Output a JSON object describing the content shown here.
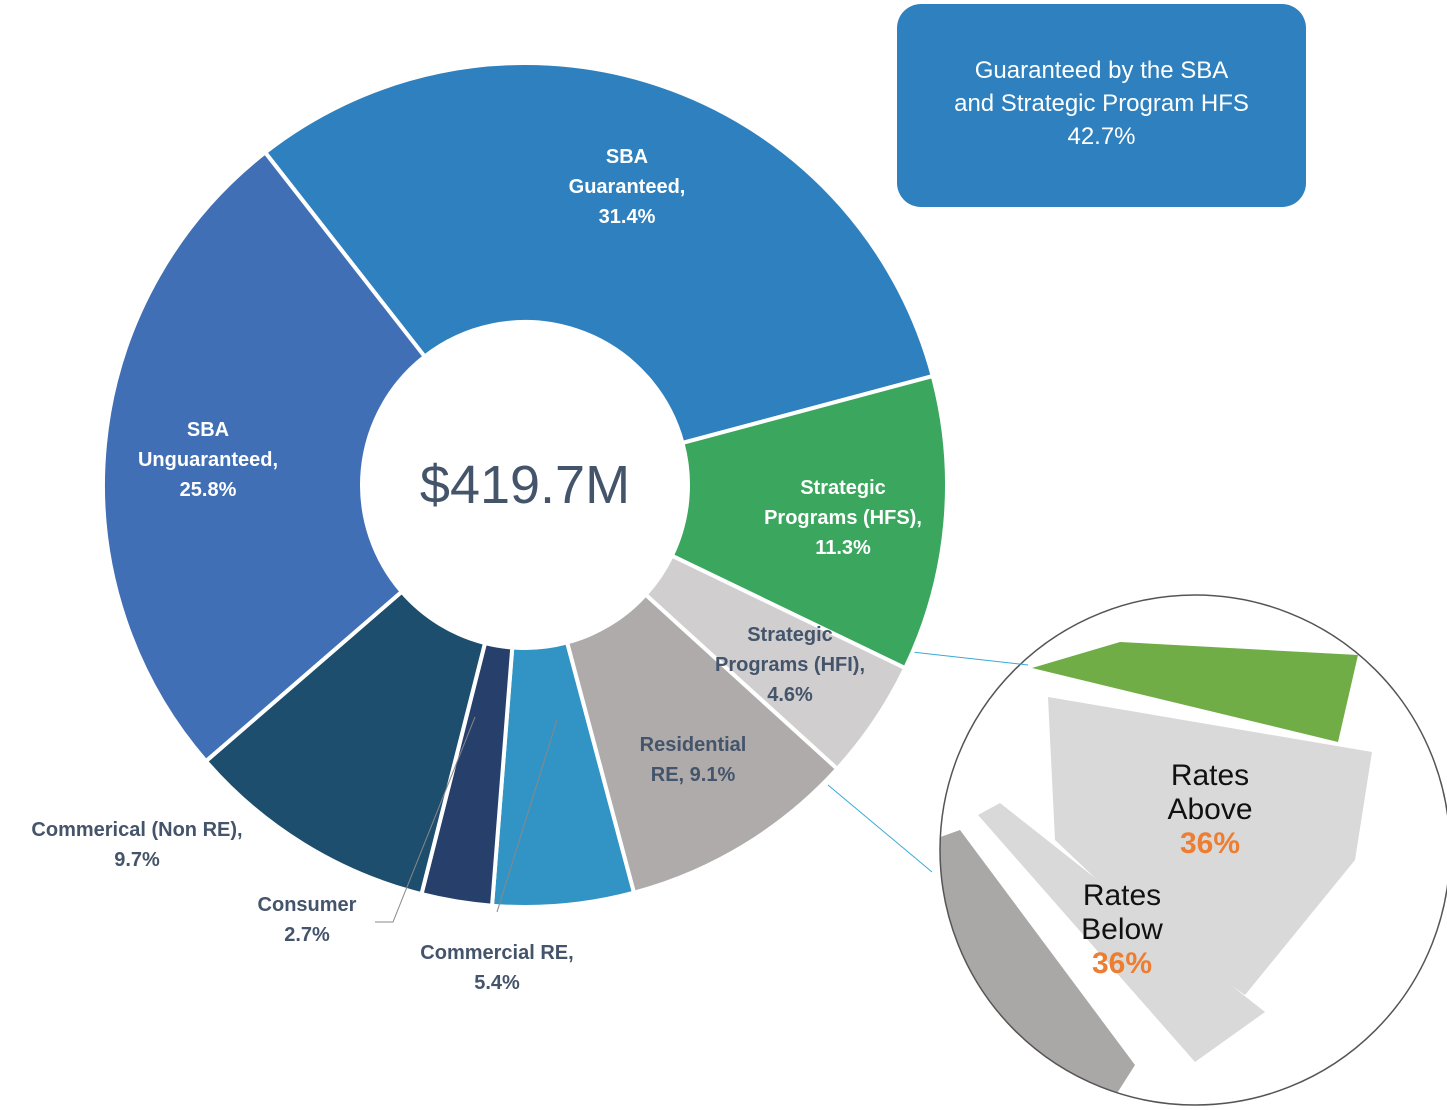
{
  "chart_data": {
    "type": "donut",
    "center_label": "$419.7M",
    "categories": [
      "SBA Guaranteed,",
      "Strategic Programs (HFS),",
      "Strategic Programs (HFI),",
      "Residential RE,",
      "Commercial RE,",
      "Consumer",
      "Commerical (Non RE),",
      "SBA Unguaranteed,"
    ],
    "values": [
      31.4,
      11.3,
      4.6,
      9.1,
      5.4,
      2.7,
      9.7,
      25.8
    ],
    "value_labels": [
      "31.4%",
      "11.3%",
      "4.6%",
      "9.1%",
      "5.4%",
      "2.7%",
      "9.7%",
      "25.8%"
    ],
    "colors": [
      "#2e80be",
      "#3aa65e",
      "#d0cece",
      "#afabab",
      "#3194c4",
      "#27406b",
      "#1e4e6e",
      "#416fb5"
    ],
    "callout": [
      "Guaranteed by the SBA",
      "and Strategic Program HFS",
      "42.7%"
    ],
    "zoom_labels": [
      {
        "text": "Rates Above",
        "value": "36%"
      },
      {
        "text": "Rates Below",
        "value": "36%"
      }
    ]
  }
}
